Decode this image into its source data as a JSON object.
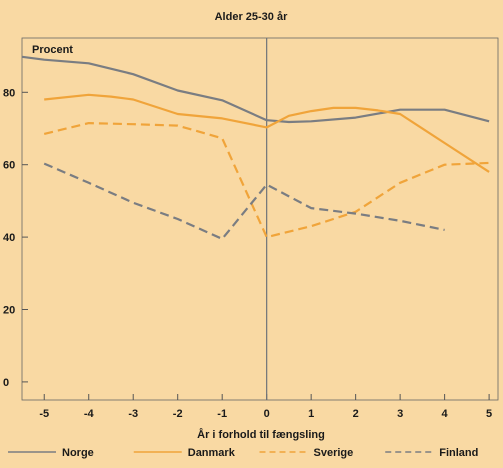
{
  "chart_data": {
    "type": "line",
    "title": "Alder 25-30 år",
    "xlabel": "År i forhold til fængsling",
    "ylabel": "Procent",
    "xlim": [
      -5.5,
      5.2
    ],
    "ylim": [
      -5,
      95
    ],
    "x_ticks": [
      -5,
      -4,
      -3,
      -2,
      -1,
      0,
      1,
      2,
      3,
      4,
      5
    ],
    "x_tick_labels": [
      "-5",
      "-4",
      "-3",
      "-2",
      "-1",
      "0",
      "1",
      "2",
      "3",
      "4",
      "5"
    ],
    "y_ticks": [
      0,
      20,
      40,
      60,
      80
    ],
    "y_tick_labels": [
      "0",
      "20",
      "40",
      "60",
      "80"
    ],
    "reference_line_x": 0,
    "grid": false,
    "legend_position": "bottom",
    "series": [
      {
        "name": "Norge",
        "color": "#7a7d82",
        "dash": "solid",
        "x": [
          -5.5,
          -5,
          -4,
          -3,
          -2,
          -1,
          0,
          0.5,
          1,
          2,
          3,
          4,
          5
        ],
        "y": [
          89.8,
          89,
          88,
          85,
          80.5,
          77.8,
          72.3,
          71.8,
          72,
          73,
          75.2,
          75.2,
          72
        ]
      },
      {
        "name": "Danmark",
        "color": "#f0a43a",
        "dash": "solid",
        "x": [
          -5,
          -4,
          -3.5,
          -3,
          -2,
          -1,
          0,
          0.5,
          1,
          1.5,
          2,
          2.5,
          3,
          4,
          5
        ],
        "y": [
          78,
          79.3,
          78.8,
          78,
          74,
          72.8,
          70.3,
          73.5,
          74.8,
          75.7,
          75.7,
          75,
          74,
          66,
          58
        ]
      },
      {
        "name": "Sverige",
        "color": "#f0a43a",
        "dash": "dashed",
        "x": [
          -5,
          -4,
          -3,
          -2,
          -1,
          0,
          1,
          2,
          3,
          4,
          5
        ],
        "y": [
          68.5,
          71.5,
          71.2,
          70.8,
          67.3,
          40,
          43,
          47,
          55,
          60,
          60.5
        ]
      },
      {
        "name": "Finland",
        "color": "#7a7d82",
        "dash": "dashed",
        "x": [
          -5,
          -4,
          -3,
          -2,
          -1,
          0,
          1,
          2,
          3,
          4
        ],
        "y": [
          60.3,
          55,
          49.5,
          45,
          39.5,
          54.5,
          48,
          46.5,
          44.5,
          42
        ]
      }
    ]
  }
}
